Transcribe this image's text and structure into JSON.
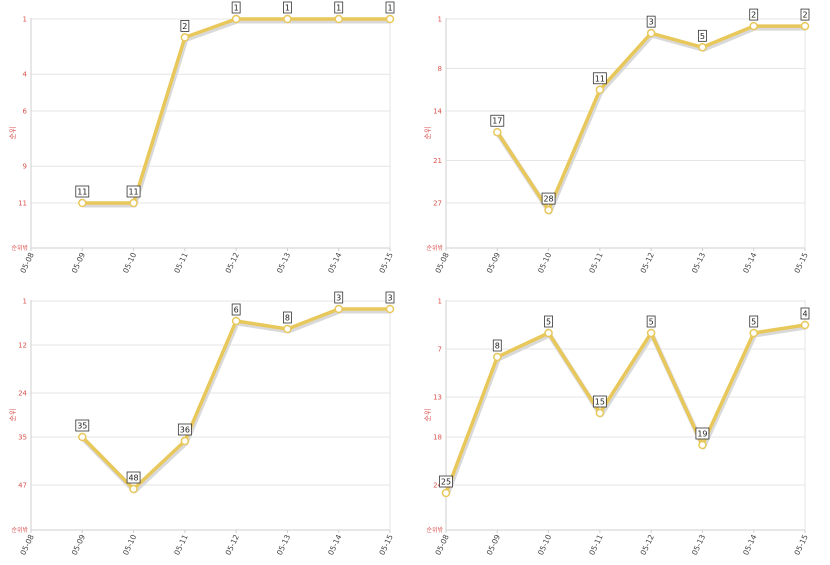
{
  "chart_data": [
    {
      "type": "line",
      "ylabel": "순위",
      "y_bottom_label": "순위밖",
      "y_inverted": true,
      "categories": [
        "05-08",
        "05-09",
        "05-10",
        "05-11",
        "05-12",
        "05-13",
        "05-14",
        "05-15"
      ],
      "ytick_labels": [
        "1",
        "4",
        "6",
        "9",
        "11"
      ],
      "ylim": [
        1,
        11
      ],
      "values": [
        null,
        11,
        11,
        2,
        1,
        1,
        1,
        1
      ],
      "point_labels": [
        "",
        "11",
        "11",
        "2",
        "1",
        "1",
        "1",
        "1"
      ],
      "grid": true,
      "line_color": "#e8c85a"
    },
    {
      "type": "line",
      "ylabel": "순위",
      "y_bottom_label": "순위밖",
      "y_inverted": true,
      "categories": [
        "05-08",
        "05-09",
        "05-10",
        "05-11",
        "05-12",
        "05-13",
        "05-14",
        "05-15"
      ],
      "ytick_labels": [
        "1",
        "8",
        "14",
        "21",
        "27"
      ],
      "ylim": [
        1,
        27
      ],
      "values": [
        null,
        17,
        28,
        11,
        3,
        5,
        2,
        2
      ],
      "point_labels": [
        "",
        "17",
        "28",
        "11",
        "3",
        "5",
        "2",
        "2"
      ],
      "grid": true,
      "line_color": "#e8c85a"
    },
    {
      "type": "line",
      "ylabel": "순위",
      "y_bottom_label": "순위밖",
      "y_inverted": true,
      "categories": [
        "05-08",
        "05-09",
        "05-10",
        "05-11",
        "05-12",
        "05-13",
        "05-14",
        "05-15"
      ],
      "ytick_labels": [
        "1",
        "12",
        "24",
        "35",
        "47"
      ],
      "ylim": [
        1,
        47
      ],
      "values": [
        null,
        35,
        48,
        36,
        6,
        8,
        3,
        3
      ],
      "point_labels": [
        "",
        "35",
        "48",
        "36",
        "6",
        "8",
        "3",
        "3"
      ],
      "grid": true,
      "line_color": "#e8c85a"
    },
    {
      "type": "line",
      "ylabel": "순위",
      "y_bottom_label": "순위밖",
      "y_inverted": true,
      "categories": [
        "05-08",
        "05-09",
        "05-10",
        "05-11",
        "05-12",
        "05-13",
        "05-14",
        "05-15"
      ],
      "ytick_labels": [
        "1",
        "7",
        "13",
        "18",
        "24"
      ],
      "ylim": [
        1,
        24
      ],
      "values": [
        25,
        8,
        5,
        15,
        5,
        19,
        5,
        4
      ],
      "point_labels": [
        "25",
        "8",
        "5",
        "15",
        "5",
        "19",
        "5",
        "4"
      ],
      "grid": true,
      "line_color": "#e8c85a"
    }
  ]
}
